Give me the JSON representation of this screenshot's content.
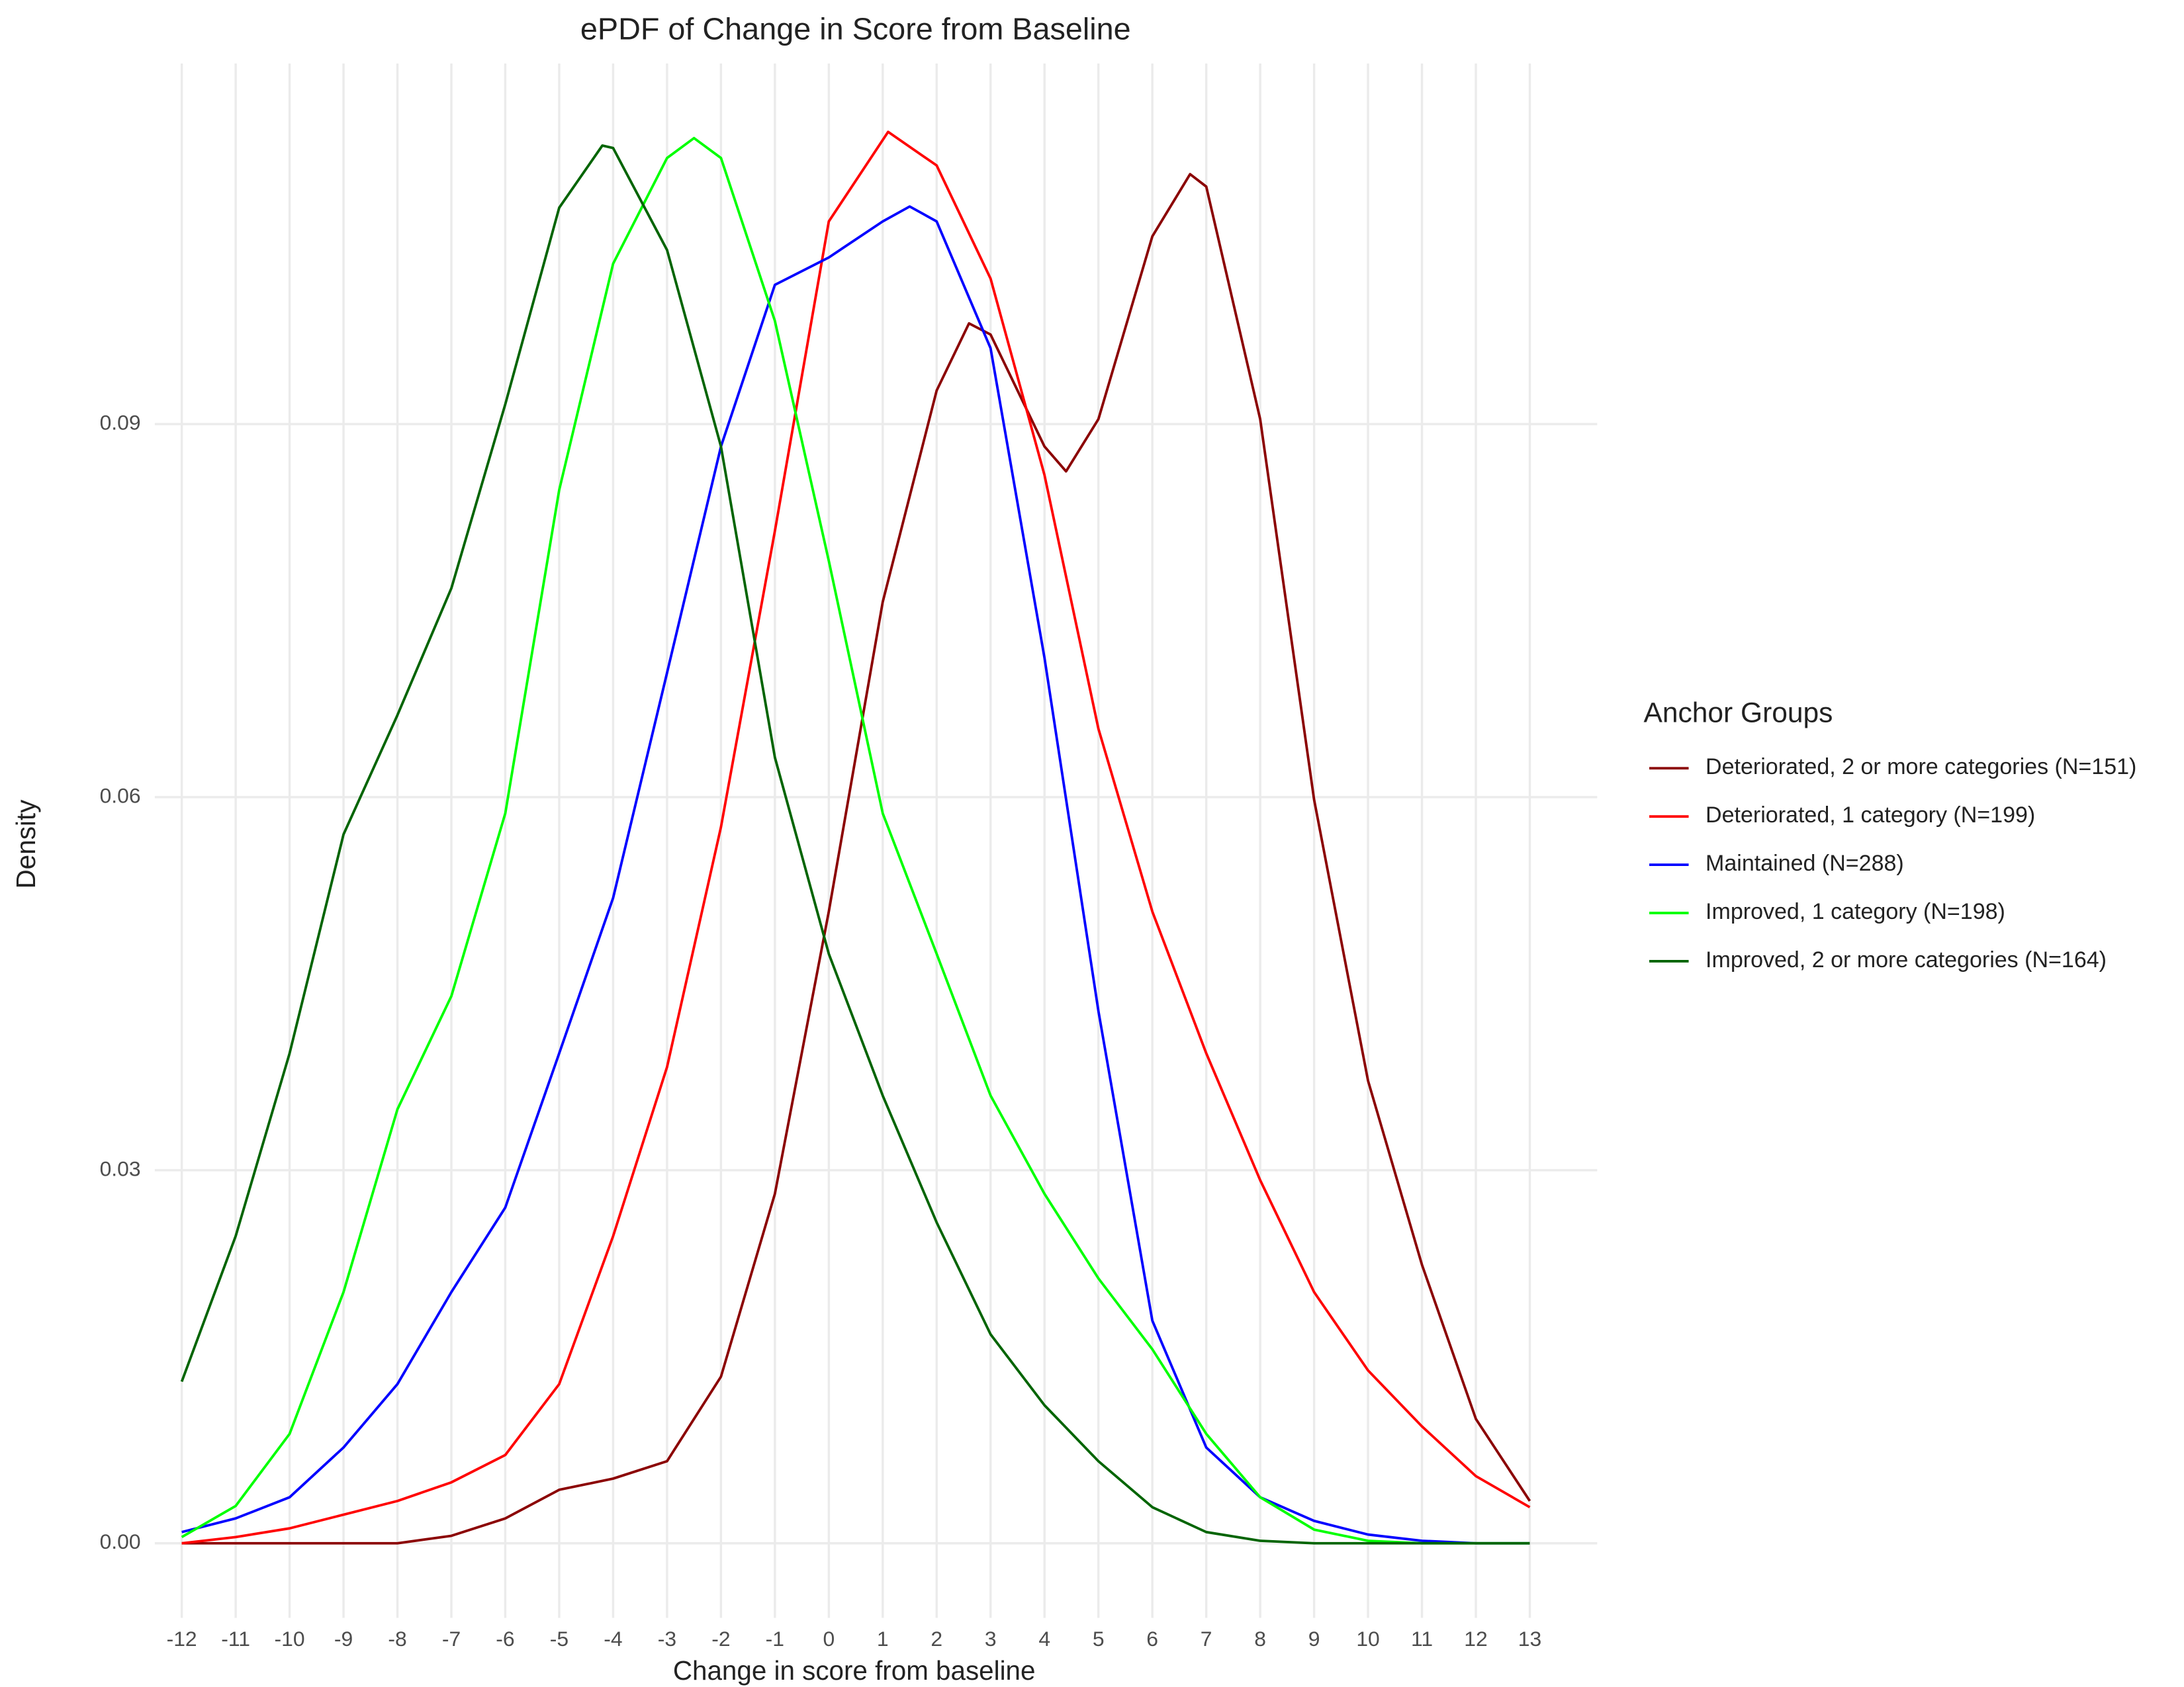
{
  "chart_data": {
    "type": "line",
    "title": "ePDF of Change in Score from Baseline",
    "x_label": "Change in score from baseline",
    "y_label": "Density",
    "legend_title": "Anchor Groups",
    "legend_position": "right",
    "grid": true,
    "xlim": [
      -12.5,
      14.25
    ],
    "ylim": [
      -0.006,
      0.119
    ],
    "xticks": [
      -12,
      -11,
      -10,
      -9,
      -8,
      -7,
      -6,
      -5,
      -4,
      -3,
      -2,
      -1,
      0,
      1,
      2,
      3,
      4,
      5,
      6,
      7,
      8,
      9,
      10,
      11,
      12,
      13
    ],
    "yticks": [
      {
        "value": 0,
        "label": "0.00"
      },
      {
        "value": 0.03,
        "label": "0.03"
      },
      {
        "value": 0.06,
        "label": "0.06"
      },
      {
        "value": 0.09,
        "label": "0.09"
      }
    ],
    "series": [
      {
        "name": "Deteriorated, 2 or more categories (N=151)",
        "color": "#8b0000",
        "x": [
          -12,
          -11,
          -10,
          -9,
          -8,
          -7,
          -6,
          -5,
          -4,
          -3,
          -2,
          -1,
          0,
          1,
          2,
          2.6,
          3,
          4,
          4.4,
          5,
          6,
          6.7,
          7,
          8,
          9,
          10,
          11,
          12,
          13
        ],
        "values": [
          0,
          0,
          0,
          0,
          0,
          0.0006,
          0.002,
          0.0043,
          0.0052,
          0.0066,
          0.0134,
          0.0281,
          0.0508,
          0.0757,
          0.0927,
          0.0981,
          0.0972,
          0.0882,
          0.0862,
          0.0904,
          0.1051,
          0.1101,
          0.1091,
          0.0904,
          0.0598,
          0.0372,
          0.0224,
          0.01,
          0.0034
        ]
      },
      {
        "name": "Deteriorated, 1 category (N=199)",
        "color": "#ff0000",
        "x": [
          -12,
          -11,
          -10,
          -9,
          -8,
          -7,
          -6,
          -5,
          -4,
          -3,
          -2,
          -1,
          0,
          1.1,
          2,
          3,
          4,
          5,
          6,
          7,
          8,
          9,
          10,
          11,
          12,
          13
        ],
        "values": [
          0,
          0.0005,
          0.0012,
          0.0023,
          0.0034,
          0.0049,
          0.0071,
          0.0128,
          0.0247,
          0.0383,
          0.0576,
          0.0814,
          0.1063,
          0.1135,
          0.1108,
          0.1017,
          0.0859,
          0.0655,
          0.0508,
          0.0394,
          0.0292,
          0.0202,
          0.0139,
          0.0094,
          0.0054,
          0.0029
        ]
      },
      {
        "name": "Maintained (N=288)",
        "color": "#0000ff",
        "x": [
          -12,
          -11,
          -10,
          -9,
          -8,
          -7,
          -6,
          -5,
          -4,
          -3,
          -2,
          -1,
          0,
          1,
          1.5,
          2,
          3,
          4,
          5,
          6,
          7,
          8,
          9,
          10,
          11,
          12,
          13
        ],
        "values": [
          0.0009,
          0.002,
          0.0037,
          0.0077,
          0.0128,
          0.0202,
          0.027,
          0.0394,
          0.0519,
          0.07,
          0.0882,
          0.1012,
          0.1034,
          0.1063,
          0.1075,
          0.1063,
          0.0961,
          0.0712,
          0.0428,
          0.0179,
          0.0077,
          0.0037,
          0.0018,
          0.0007,
          0.0002,
          0,
          0
        ]
      },
      {
        "name": "Improved, 1 category (N=198)",
        "color": "#00ff00",
        "x": [
          -12,
          -11,
          -10,
          -9,
          -8,
          -7,
          -6,
          -5,
          -4,
          -3,
          -2.5,
          -2,
          -1,
          0,
          1,
          2,
          3,
          4,
          5,
          6,
          7,
          8,
          9,
          10,
          11,
          12,
          13
        ],
        "values": [
          0.0005,
          0.003,
          0.0088,
          0.0202,
          0.0349,
          0.044,
          0.0587,
          0.0847,
          0.1029,
          0.1114,
          0.113,
          0.1114,
          0.0983,
          0.079,
          0.0587,
          0.0474,
          0.036,
          0.0281,
          0.0213,
          0.0156,
          0.0088,
          0.0037,
          0.0011,
          0.0002,
          0,
          0,
          0
        ]
      },
      {
        "name": "Improved, 2 or more categories (N=164)",
        "color": "#006400",
        "x": [
          -12,
          -11,
          -10,
          -9,
          -8,
          -7,
          -6,
          -5,
          -4.2,
          -4,
          -3,
          -2,
          -1,
          0,
          1,
          2,
          3,
          4,
          5,
          6,
          7,
          8,
          9,
          10,
          11,
          12,
          13
        ],
        "values": [
          0.013,
          0.0247,
          0.0394,
          0.057,
          0.0666,
          0.0768,
          0.0916,
          0.1074,
          0.1124,
          0.1122,
          0.104,
          0.0882,
          0.0632,
          0.0474,
          0.036,
          0.0258,
          0.0168,
          0.0111,
          0.0066,
          0.0029,
          0.0009,
          0.0002,
          0,
          0,
          0,
          0,
          0
        ]
      }
    ]
  }
}
